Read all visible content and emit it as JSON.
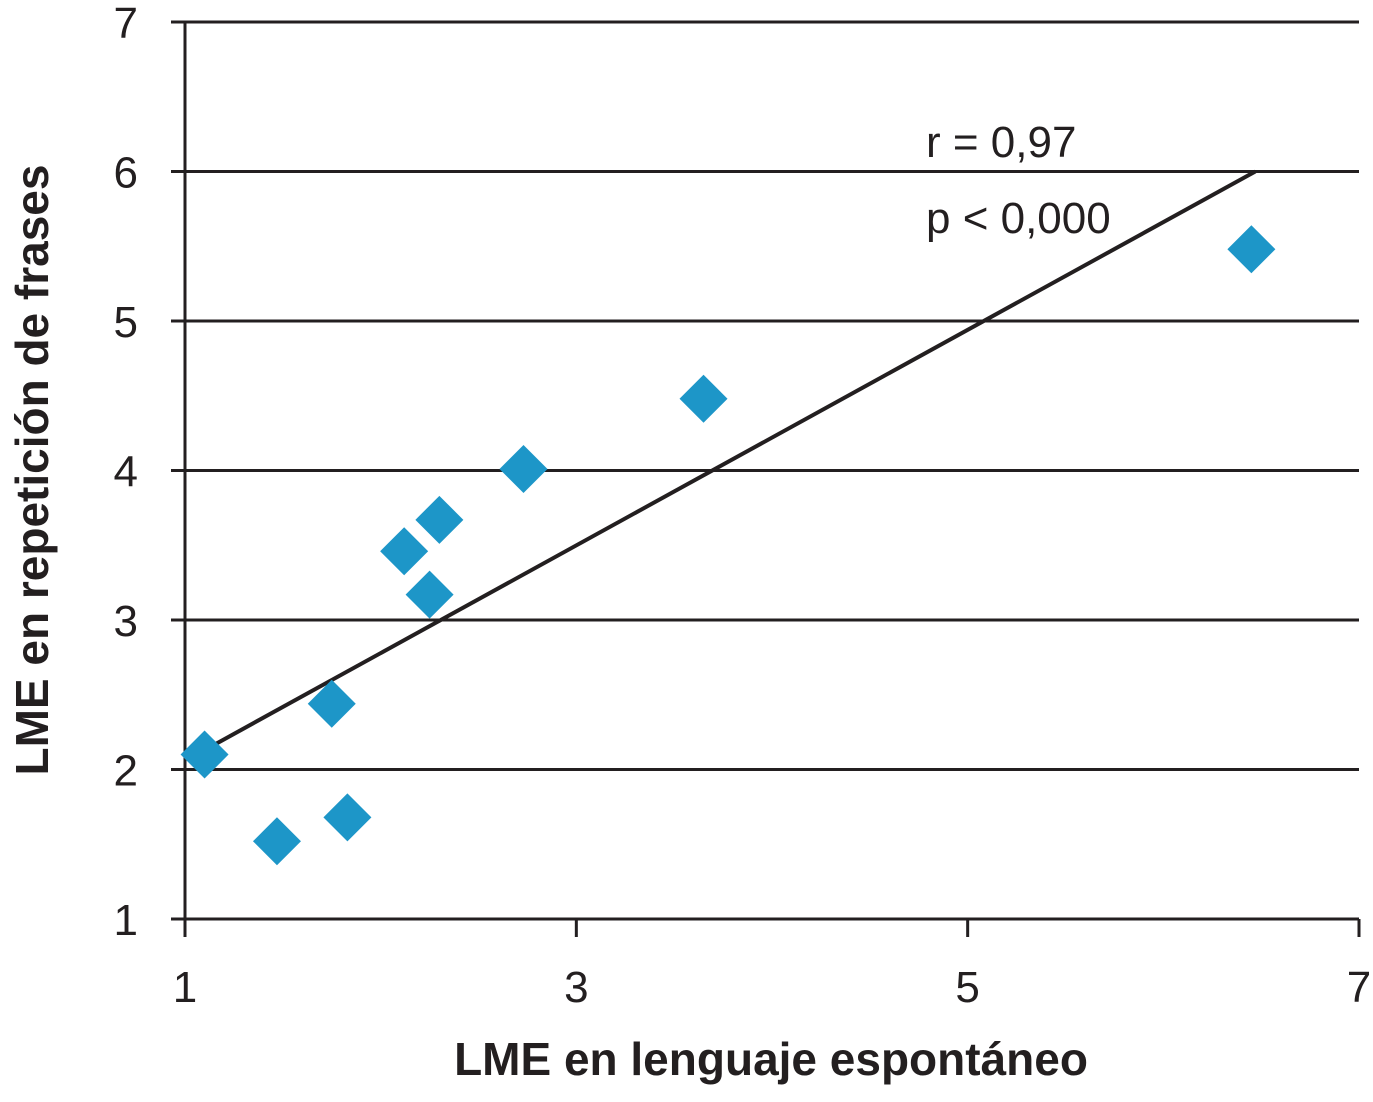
{
  "chart_data": {
    "type": "scatter",
    "xlabel": "LME en lenguaje espontáneo",
    "ylabel": "LME en repetición de frases",
    "xlim": [
      1,
      7
    ],
    "ylim": [
      1,
      7
    ],
    "xticks": [
      "1",
      "3",
      "5",
      "7"
    ],
    "yticks": [
      "1",
      "2",
      "3",
      "4",
      "5",
      "6",
      "7"
    ],
    "grid": "horizontal",
    "marker": "diamond",
    "series": [
      {
        "points": [
          {
            "x": 1.1,
            "y": 2.1
          },
          {
            "x": 1.47,
            "y": 1.52
          },
          {
            "x": 1.75,
            "y": 2.44
          },
          {
            "x": 1.83,
            "y": 1.68
          },
          {
            "x": 2.12,
            "y": 3.46
          },
          {
            "x": 2.25,
            "y": 3.17
          },
          {
            "x": 2.3,
            "y": 3.67
          },
          {
            "x": 2.73,
            "y": 4.01
          },
          {
            "x": 3.65,
            "y": 4.48
          },
          {
            "x": 6.45,
            "y": 5.48
          }
        ]
      }
    ],
    "trendline": {
      "x1": 1.1,
      "y1": 2.13,
      "x2": 6.47,
      "y2": 6.0
    },
    "annotations": [
      "r = 0,97",
      "p < 0,000"
    ],
    "colors": {
      "marker": "#1d96c8",
      "line": "#231f20",
      "grid": "#231f20",
      "text": "#231f20"
    }
  }
}
